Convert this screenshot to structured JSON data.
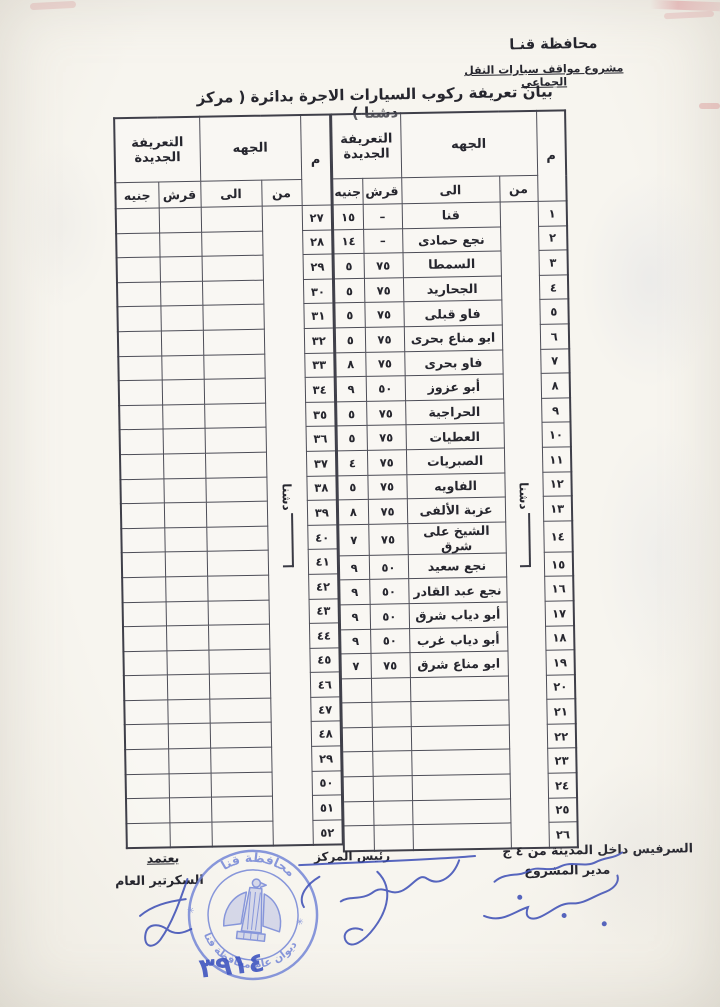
{
  "document": {
    "header": {
      "governorate": "محافظة قنـا",
      "project_line": "مشروع مواقف سيارات النقل الجماعي",
      "title": "بيان تعريفة ركوب السيارات الاجرة بدائرة ( مركز دشنا )"
    },
    "table": {
      "col_num": "م",
      "col_destination": "الجهه",
      "col_from": "من",
      "col_to": "الى",
      "col_tariff": "التعريفة الجديدة",
      "col_piasters": "قرش",
      "col_pounds": "جنيه",
      "from_city": "دشنا"
    },
    "right_rows": [
      [
        "١",
        "قنا",
        "–",
        "١٥"
      ],
      [
        "٢",
        "نجع حمادى",
        "–",
        "١٤"
      ],
      [
        "٣",
        "السمطا",
        "٧٥",
        "٥"
      ],
      [
        "٤",
        "الجحاريد",
        "٧٥",
        "٥"
      ],
      [
        "٥",
        "فاو قبلى",
        "٧٥",
        "٥"
      ],
      [
        "٦",
        "ابو مناع بحرى",
        "٧٥",
        "٥"
      ],
      [
        "٧",
        "فاو بحرى",
        "٧٥",
        "٨"
      ],
      [
        "٨",
        "أبو عزوز",
        "٥٠",
        "٩"
      ],
      [
        "٩",
        "الحراجية",
        "٧٥",
        "٥"
      ],
      [
        "١٠",
        "العطيات",
        "٧٥",
        "٥"
      ],
      [
        "١١",
        "الصبريات",
        "٧٥",
        "٤"
      ],
      [
        "١٢",
        "الفاويه",
        "٧٥",
        "٥"
      ],
      [
        "١٣",
        "عزبة الألفى",
        "٧٥",
        "٨"
      ],
      [
        "١٤",
        "الشيخ على شرق",
        "٧٥",
        "٧"
      ],
      [
        "١٥",
        "نجع سعيد",
        "٥٠",
        "٩"
      ],
      [
        "١٦",
        "نجع عبد القادر",
        "٥٠",
        "٩"
      ],
      [
        "١٧",
        "أبو دياب شرق",
        "٥٠",
        "٩"
      ],
      [
        "١٨",
        "أبو دياب غرب",
        "٥٠",
        "٩"
      ],
      [
        "١٩",
        "ابو مناع شرق",
        "٧٥",
        "٧"
      ],
      [
        "٢٠",
        "",
        "",
        ""
      ],
      [
        "٢١",
        "",
        "",
        ""
      ],
      [
        "٢٢",
        "",
        "",
        ""
      ],
      [
        "٢٣",
        "",
        "",
        ""
      ],
      [
        "٢٤",
        "",
        "",
        ""
      ],
      [
        "٢٥",
        "",
        "",
        ""
      ],
      [
        "٢٦",
        "",
        "",
        ""
      ]
    ],
    "left_rows": [
      [
        "٢٧",
        "",
        "",
        ""
      ],
      [
        "٢٨",
        "",
        "",
        ""
      ],
      [
        "٢٩",
        "",
        "",
        ""
      ],
      [
        "٣٠",
        "",
        "",
        ""
      ],
      [
        "٣١",
        "",
        "",
        ""
      ],
      [
        "٣٢",
        "",
        "",
        ""
      ],
      [
        "٣٣",
        "",
        "",
        ""
      ],
      [
        "٣٤",
        "",
        "",
        ""
      ],
      [
        "٣٥",
        "",
        "",
        ""
      ],
      [
        "٣٦",
        "",
        "",
        ""
      ],
      [
        "٣٧",
        "",
        "",
        ""
      ],
      [
        "٣٨",
        "",
        "",
        ""
      ],
      [
        "٣٩",
        "",
        "",
        ""
      ],
      [
        "٤٠",
        "",
        "",
        ""
      ],
      [
        "٤١",
        "",
        "",
        ""
      ],
      [
        "٤٢",
        "",
        "",
        ""
      ],
      [
        "٤٣",
        "",
        "",
        ""
      ],
      [
        "٤٤",
        "",
        "",
        ""
      ],
      [
        "٤٥",
        "",
        "",
        ""
      ],
      [
        "٤٦",
        "",
        "",
        ""
      ],
      [
        "٤٧",
        "",
        "",
        ""
      ],
      [
        "٤٨",
        "",
        "",
        ""
      ],
      [
        "٢٩",
        "",
        "",
        ""
      ],
      [
        "٥٠",
        "",
        "",
        ""
      ],
      [
        "٥١",
        "",
        "",
        ""
      ],
      [
        "٥٢",
        "",
        "",
        ""
      ]
    ],
    "footer": {
      "service_note": "السرفيس داخل المدينة من ٤ ج",
      "project_director": "مدير المشروع",
      "center_head": "رئيس المركز",
      "approve": "يعتمد",
      "secretary_general": "السكرتير العام"
    },
    "stamp": {
      "top_text": "محافظة قنا",
      "bottom_text": "ديوان عام محافظة قنا",
      "serial": "٣٩١٤"
    },
    "colors": {
      "ink_blue": "#3a4cb5",
      "stamp_blue": "#6f82d6"
    }
  }
}
